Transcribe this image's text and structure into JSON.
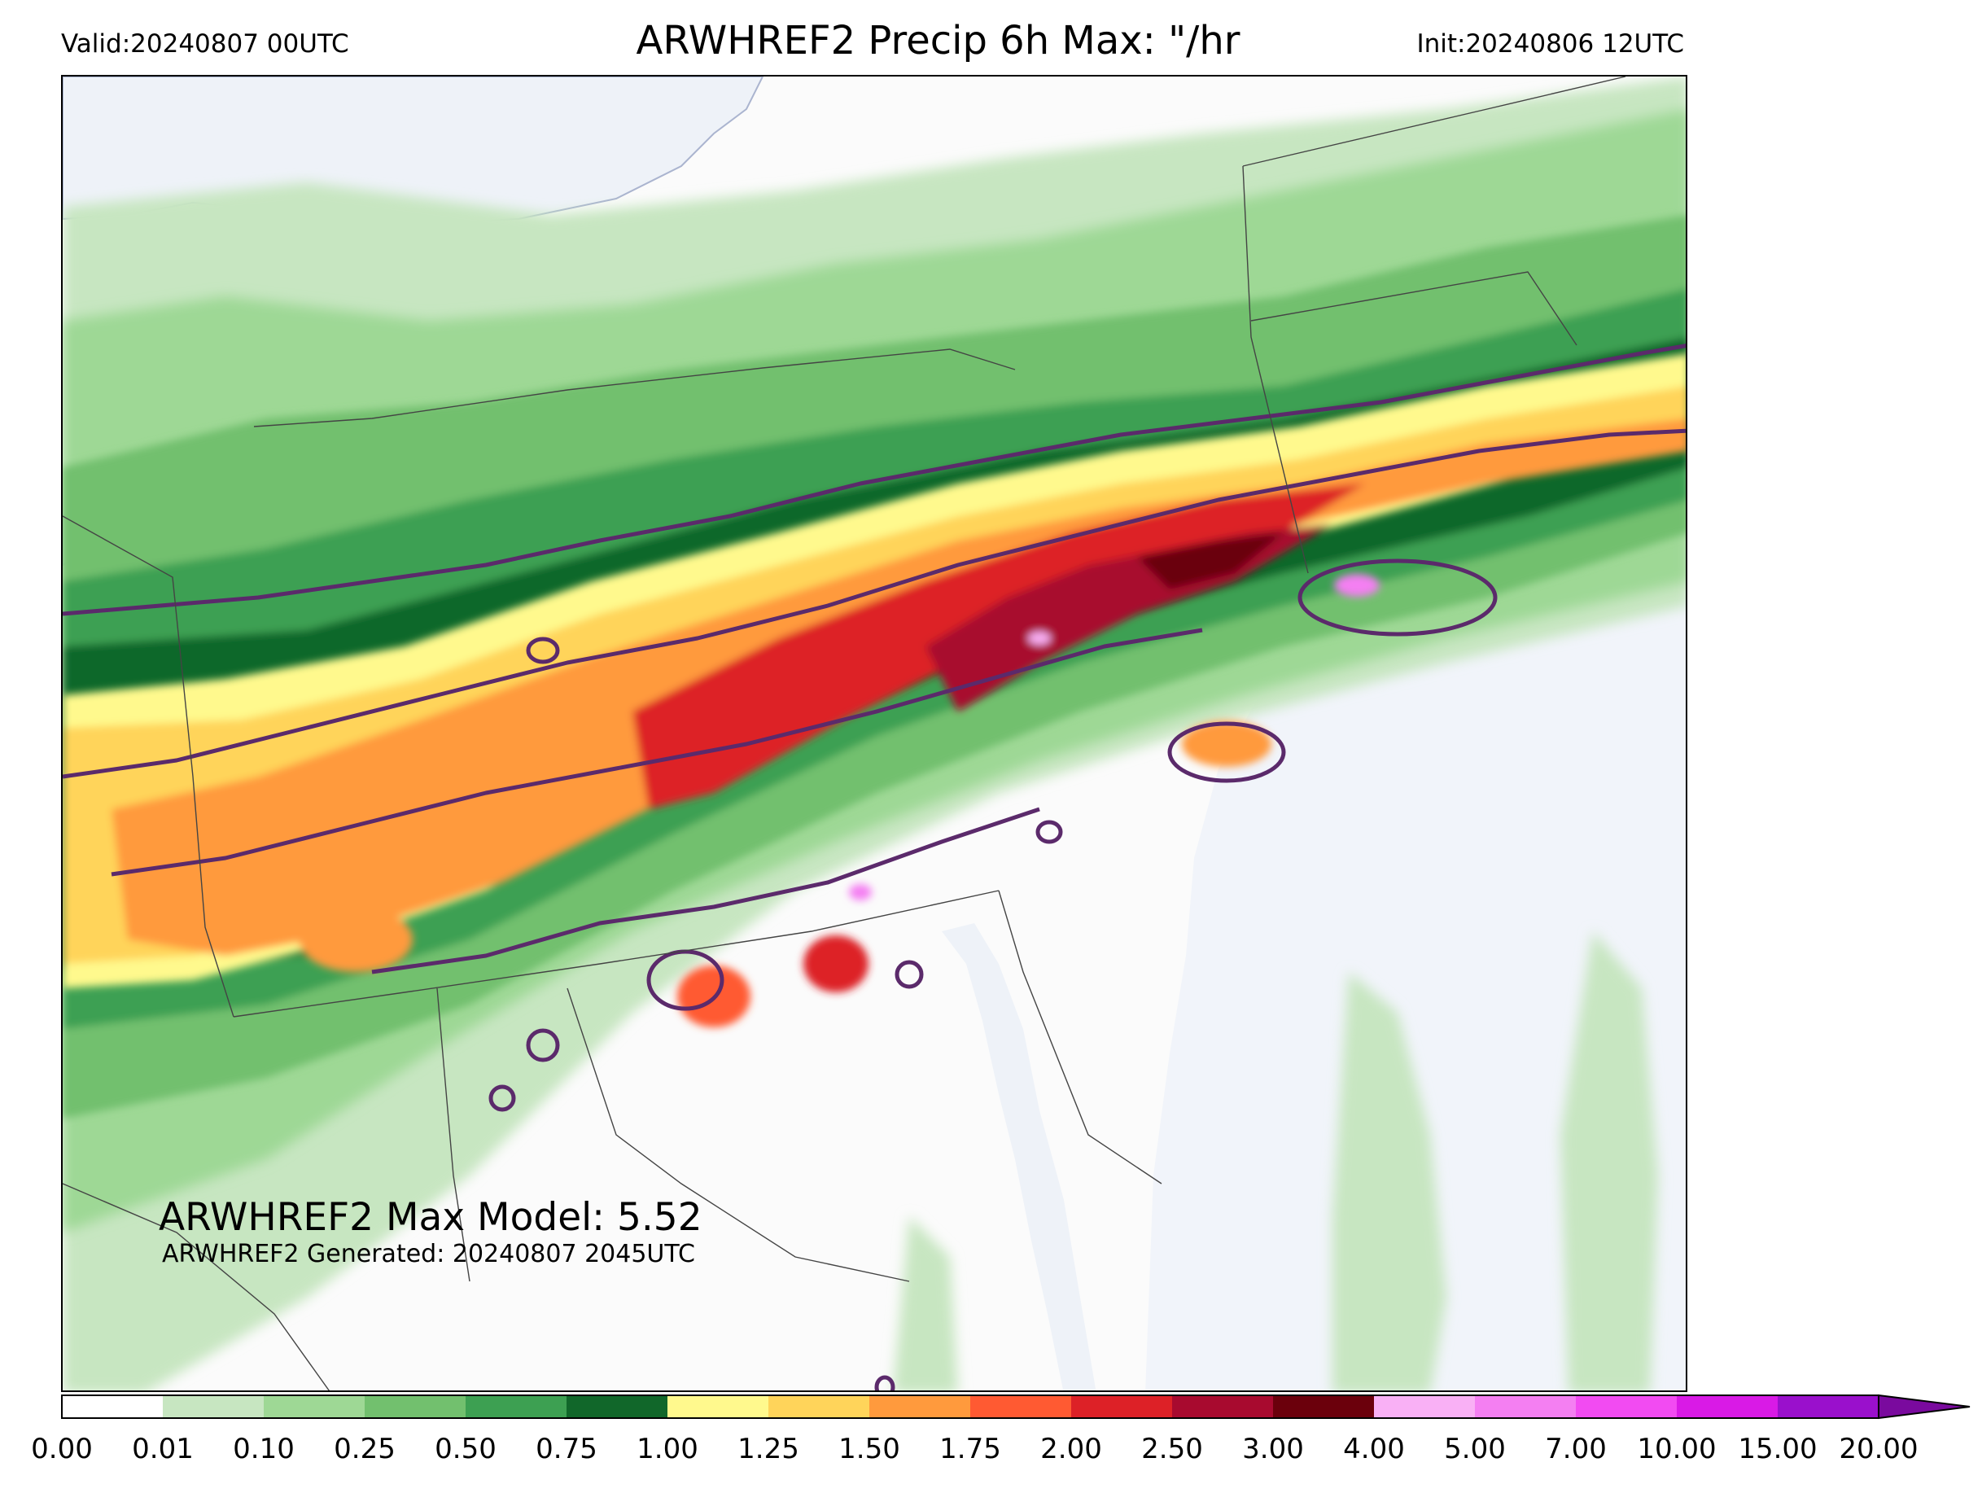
{
  "header": {
    "valid": "Valid:20240807 00UTC",
    "title": "ARWHREF2 Precip 6h Max: \"/hr",
    "init": "Init:20240806 12UTC"
  },
  "annotations": {
    "max_model": "ARWHREF2 Max Model: 5.52",
    "generated": "ARWHREF2 Generated: 20240807 2045UTC"
  },
  "map": {
    "region": "Northeastern United States",
    "water_color": "#f1f4fa",
    "land_color": "#fbfbfb",
    "contour_color": "#5b2a6b"
  },
  "colorbar": {
    "ticks": [
      "0.00",
      "0.01",
      "0.10",
      "0.25",
      "0.50",
      "0.75",
      "1.00",
      "1.25",
      "1.50",
      "1.75",
      "2.00",
      "2.50",
      "3.00",
      "4.00",
      "5.00",
      "7.00",
      "10.00",
      "15.00",
      "20.00"
    ],
    "colors": [
      "#ffffff",
      "#c7e6c1",
      "#9ed895",
      "#72c06e",
      "#3da052",
      "#11672a",
      "#fff98d",
      "#ffd45a",
      "#ff9a3d",
      "#ff5a32",
      "#dd2127",
      "#a80a2f",
      "#6b000c",
      "#f9b0f5",
      "#f47ff2",
      "#f24bf2",
      "#d91ae6",
      "#9a10cc"
    ],
    "extend_color": "#7a0a9e"
  }
}
